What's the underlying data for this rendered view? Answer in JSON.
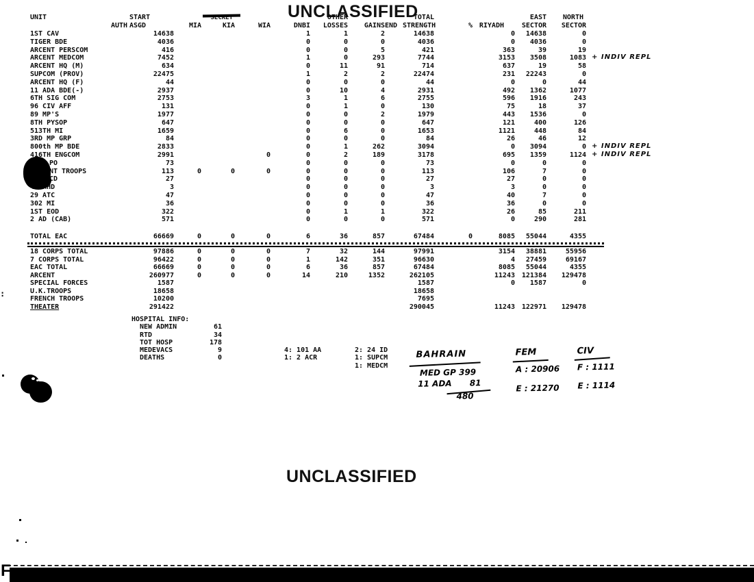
{
  "page": {
    "classification_top": "UNCLASSIFIED",
    "classification_bottom": "UNCLASSIFIED",
    "crossed_out_label": "SECRET",
    "corner_letter": "F",
    "margin_mark": ":"
  },
  "table": {
    "header_line1": [
      "UNIT",
      "",
      "START",
      "",
      "SECRET",
      "",
      "",
      "OTHER",
      "",
      "",
      "TOTAL",
      "",
      "",
      "EAST",
      "NORTH"
    ],
    "header_line2": [
      "",
      "AUTH",
      "ASGD",
      "MIA",
      "KIA",
      "WIA",
      "DNBI",
      "LOSSES",
      "GAINS",
      "END",
      "STRENGTH",
      "%",
      "RIYADH",
      "SECTOR",
      "SECTOR"
    ],
    "rows": [
      {
        "unit": "1ST CAV",
        "vals": [
          "",
          "14638",
          "",
          "",
          "",
          "1",
          "1",
          "2",
          "",
          "14638",
          "",
          "0",
          "14638",
          "0"
        ]
      },
      {
        "unit": "TIGER BDE",
        "vals": [
          "",
          "4036",
          "",
          "",
          "",
          "0",
          "0",
          "0",
          "",
          "4036",
          "",
          "0",
          "4036",
          "0"
        ]
      },
      {
        "unit": "ARCENT PERSCOM",
        "vals": [
          "",
          "416",
          "",
          "",
          "",
          "0",
          "0",
          "5",
          "",
          "421",
          "",
          "363",
          "39",
          "19"
        ]
      },
      {
        "unit": "ARCENT MEDCOM",
        "vals": [
          "",
          "7452",
          "",
          "",
          "",
          "1",
          "0",
          "293",
          "",
          "7744",
          "",
          "3153",
          "3508",
          "1083"
        ],
        "annot": "+ INDIV REPL"
      },
      {
        "unit": "ARCENT HQ (M)",
        "vals": [
          "",
          "634",
          "",
          "",
          "",
          "0",
          "11",
          "91",
          "",
          "714",
          "",
          "637",
          "19",
          "58"
        ]
      },
      {
        "unit": "SUPCOM (PROV)",
        "vals": [
          "",
          "22475",
          "",
          "",
          "",
          "1",
          "2",
          "2",
          "",
          "22474",
          "",
          "231",
          "22243",
          "0"
        ]
      },
      {
        "unit": "ARCENT HQ (F)",
        "vals": [
          "",
          "44",
          "",
          "",
          "",
          "0",
          "0",
          "0",
          "",
          "44",
          "",
          "0",
          "0",
          "44"
        ]
      },
      {
        "unit": "11 ADA BDE(-)",
        "vals": [
          "",
          "2937",
          "",
          "",
          "",
          "0",
          "10",
          "4",
          "",
          "2931",
          "",
          "492",
          "1362",
          "1077"
        ]
      },
      {
        "unit": "6TH SIG COM",
        "vals": [
          "",
          "2753",
          "",
          "",
          "",
          "3",
          "1",
          "6",
          "",
          "2755",
          "",
          "596",
          "1916",
          "243"
        ]
      },
      {
        "unit": "96 CIV AFF",
        "vals": [
          "",
          "131",
          "",
          "",
          "",
          "0",
          "1",
          "0",
          "",
          "130",
          "",
          "75",
          "18",
          "37"
        ]
      },
      {
        "unit": "89 MP'S",
        "vals": [
          "",
          "1977",
          "",
          "",
          "",
          "0",
          "0",
          "2",
          "",
          "1979",
          "",
          "443",
          "1536",
          "0"
        ]
      },
      {
        "unit": "8TH PYSOP",
        "vals": [
          "",
          "647",
          "",
          "",
          "",
          "0",
          "0",
          "0",
          "",
          "647",
          "",
          "121",
          "400",
          "126"
        ]
      },
      {
        "unit": "513TH MI",
        "vals": [
          "",
          "1659",
          "",
          "",
          "",
          "0",
          "6",
          "0",
          "",
          "1653",
          "",
          "1121",
          "448",
          "84"
        ]
      },
      {
        "unit": "3RD MP GRP",
        "vals": [
          "",
          "84",
          "",
          "",
          "",
          "0",
          "0",
          "0",
          "",
          "84",
          "",
          "26",
          "46",
          "12"
        ]
      },
      {
        "unit": "800th MP BDE",
        "vals": [
          "",
          "2833",
          "",
          "",
          "",
          "0",
          "1",
          "262",
          "",
          "3094",
          "",
          "0",
          "3094",
          "0"
        ],
        "annot": "+ INDIV REPL"
      },
      {
        "unit": "416TH ENGCOM",
        "vals": [
          "",
          "2991",
          "",
          "",
          "0",
          "0",
          "2",
          "189",
          "",
          "3178",
          "",
          "695",
          "1359",
          "1124"
        ],
        "annot": "+ INDIV REPL"
      },
      {
        "unit": "PO",
        "redacted": true,
        "vals": [
          "",
          "73",
          "",
          "",
          "",
          "0",
          "0",
          "0",
          "",
          "73",
          "",
          "0",
          "0",
          "0"
        ]
      },
      {
        "unit": "NT TROOPS",
        "redacted": true,
        "vals": [
          "",
          "113",
          "0",
          "0",
          "0",
          "0",
          "0",
          "0",
          "",
          "113",
          "",
          "106",
          "7",
          "0"
        ]
      },
      {
        "unit": "CD",
        "redacted": true,
        "vals": [
          "",
          "27",
          "",
          "",
          "",
          "0",
          "0",
          "0",
          "",
          "27",
          "",
          "27",
          "0",
          "0"
        ]
      },
      {
        "unit": "44 MHD",
        "vals": [
          "",
          "3",
          "",
          "",
          "",
          "0",
          "0",
          "0",
          "",
          "3",
          "",
          "3",
          "0",
          "0"
        ]
      },
      {
        "unit": "29 ATC",
        "vals": [
          "",
          "47",
          "",
          "",
          "",
          "0",
          "0",
          "0",
          "",
          "47",
          "",
          "40",
          "7",
          "0"
        ]
      },
      {
        "unit": "302 MI",
        "vals": [
          "",
          "36",
          "",
          "",
          "",
          "0",
          "0",
          "0",
          "",
          "36",
          "",
          "36",
          "0",
          "0"
        ]
      },
      {
        "unit": "1ST EOD",
        "vals": [
          "",
          "322",
          "",
          "",
          "",
          "0",
          "1",
          "1",
          "",
          "322",
          "",
          "26",
          "85",
          "211"
        ]
      },
      {
        "unit": "2 AD (CAB)",
        "vals": [
          "",
          "571",
          "",
          "",
          "",
          "0",
          "0",
          "0",
          "",
          "571",
          "",
          "0",
          "290",
          "281"
        ]
      }
    ],
    "total_row": {
      "unit": "TOTAL EAC",
      "vals": [
        "",
        "66669",
        "0",
        "0",
        "0",
        "6",
        "36",
        "857",
        "",
        "67484",
        "0",
        "8085",
        "55044",
        "4355"
      ]
    },
    "totals_rows": [
      {
        "unit": "18 CORPS TOTAL",
        "vals": [
          "",
          "97886",
          "0",
          "0",
          "0",
          "7",
          "32",
          "144",
          "",
          "97991",
          "",
          "3154",
          "38881",
          "55956"
        ]
      },
      {
        "unit": "7 CORPS TOTAL",
        "vals": [
          "",
          "96422",
          "0",
          "0",
          "0",
          "1",
          "142",
          "351",
          "",
          "96630",
          "",
          "4",
          "27459",
          "69167"
        ]
      },
      {
        "unit": "EAC TOTAL",
        "vals": [
          "",
          "66669",
          "0",
          "0",
          "0",
          "6",
          "36",
          "857",
          "",
          "67484",
          "",
          "8085",
          "55044",
          "4355"
        ]
      },
      {
        "unit": "ARCENT",
        "vals": [
          "",
          "260977",
          "0",
          "0",
          "0",
          "14",
          "210",
          "1352",
          "",
          "262105",
          "",
          "11243",
          "121384",
          "129478"
        ]
      },
      {
        "unit": "SPECIAL FORCES",
        "vals": [
          "",
          "1587",
          "",
          "",
          "",
          "",
          "",
          "",
          "",
          "1587",
          "",
          "0",
          "1587",
          "0"
        ]
      },
      {
        "unit": "U.K.TROOPS",
        "vals": [
          "",
          "18658",
          "",
          "",
          "",
          "",
          "",
          "",
          "",
          "18658",
          "",
          "",
          "",
          ""
        ]
      },
      {
        "unit": "FRENCH TROOPS",
        "vals": [
          "",
          "10200",
          "",
          "",
          "",
          "",
          "",
          "",
          "",
          "7695",
          "",
          "",
          "",
          ""
        ]
      },
      {
        "unit": "THEATER",
        "underline": true,
        "vals": [
          "",
          "291422",
          "",
          "",
          "",
          "",
          "",
          "",
          "",
          "290045",
          "",
          "11243",
          "122971",
          "129478"
        ]
      }
    ]
  },
  "hospital": {
    "title": "HOSPITAL INFO:",
    "items": [
      {
        "label": "NEW ADMIN",
        "value": "61"
      },
      {
        "label": "RTD",
        "value": "34"
      },
      {
        "label": "TOT HOSP",
        "value": "178"
      },
      {
        "label": "MEDEVACS",
        "value": "9"
      },
      {
        "label": "DEATHS",
        "value": "0"
      }
    ],
    "medevac_col1": [
      "4: 101 AA",
      "1: 2 ACR"
    ],
    "medevac_col2": [
      "2: 24 ID",
      "1: SUPCM",
      "1: MEDCM"
    ]
  },
  "handwritten": {
    "bahrain": {
      "title": "BAHRAIN",
      "line2": "MED GP  399",
      "line3": "11 ADA",
      "line3b": "81",
      "line4": "480"
    },
    "fem": {
      "title": "FEM",
      "line2": "A : 20906",
      "line3": "E : 21270"
    },
    "civ": {
      "title": "CIV",
      "line2": "F :  1111",
      "line3": "E : 1114"
    }
  }
}
